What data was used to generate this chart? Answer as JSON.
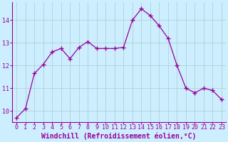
{
  "x": [
    0,
    1,
    2,
    3,
    4,
    5,
    6,
    7,
    8,
    9,
    10,
    11,
    12,
    13,
    14,
    15,
    16,
    17,
    18,
    19,
    20,
    21,
    22,
    23
  ],
  "y": [
    9.7,
    10.1,
    11.65,
    12.05,
    12.6,
    12.75,
    12.3,
    12.8,
    13.05,
    12.75,
    12.75,
    12.75,
    12.8,
    14.0,
    14.5,
    14.2,
    13.75,
    13.2,
    12.0,
    11.0,
    10.8,
    11.0,
    10.9,
    10.5
  ],
  "line_color": "#990099",
  "marker": "+",
  "marker_size": 4,
  "bg_color": "#cceeff",
  "grid_color": "#aacccc",
  "xlabel": "Windchill (Refroidissement éolien,°C)",
  "ylim": [
    9.5,
    14.8
  ],
  "xlim": [
    -0.5,
    23.5
  ],
  "xticks": [
    0,
    1,
    2,
    3,
    4,
    5,
    6,
    7,
    8,
    9,
    10,
    11,
    12,
    13,
    14,
    15,
    16,
    17,
    18,
    19,
    20,
    21,
    22,
    23
  ],
  "yticks": [
    10,
    11,
    12,
    13,
    14
  ],
  "xlabel_fontsize": 7,
  "tick_fontsize": 6,
  "label_color": "#990099"
}
